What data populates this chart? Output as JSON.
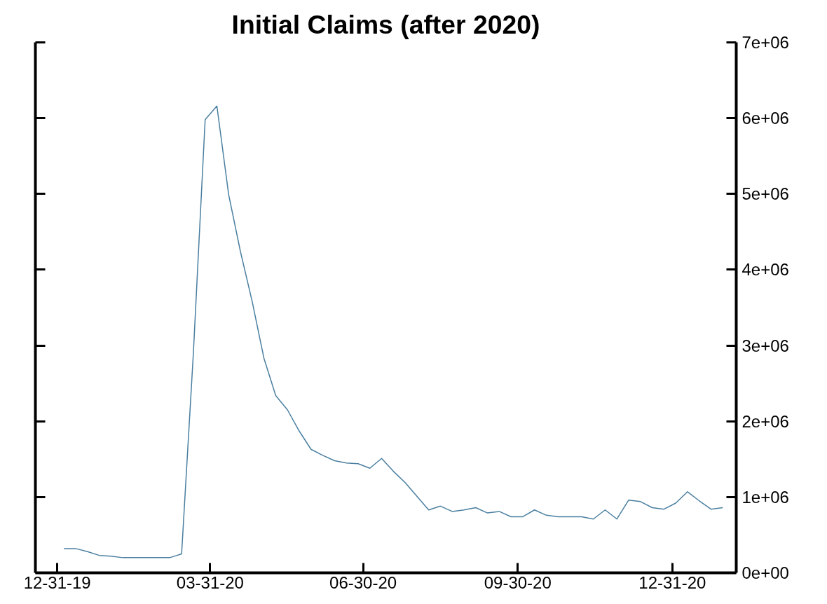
{
  "chart_data": {
    "type": "line",
    "title": "Initial Claims (after 2020)",
    "x": [
      "2020-01-04",
      "2020-01-11",
      "2020-01-18",
      "2020-01-25",
      "2020-02-01",
      "2020-02-08",
      "2020-02-15",
      "2020-02-22",
      "2020-02-29",
      "2020-03-07",
      "2020-03-14",
      "2020-03-21",
      "2020-03-28",
      "2020-04-04",
      "2020-04-11",
      "2020-04-18",
      "2020-04-25",
      "2020-05-02",
      "2020-05-09",
      "2020-05-16",
      "2020-05-23",
      "2020-05-30",
      "2020-06-06",
      "2020-06-13",
      "2020-06-20",
      "2020-06-27",
      "2020-07-04",
      "2020-07-11",
      "2020-07-18",
      "2020-07-25",
      "2020-08-01",
      "2020-08-08",
      "2020-08-15",
      "2020-08-22",
      "2020-08-29",
      "2020-09-05",
      "2020-09-12",
      "2020-09-19",
      "2020-09-26",
      "2020-10-03",
      "2020-10-10",
      "2020-10-17",
      "2020-10-24",
      "2020-10-31",
      "2020-11-07",
      "2020-11-14",
      "2020-11-21",
      "2020-11-28",
      "2020-12-05",
      "2020-12-12",
      "2020-12-19",
      "2020-12-26",
      "2021-01-02",
      "2021-01-09",
      "2021-01-16",
      "2021-01-23",
      "2021-01-30"
    ],
    "series": [
      {
        "color": "#4a7fa0",
        "values": [
          320000,
          320000,
          280000,
          230000,
          220000,
          200000,
          200000,
          200000,
          200000,
          200000,
          250000,
          2900000,
          5980000,
          6160000,
          4990000,
          4240000,
          3580000,
          2830000,
          2340000,
          2150000,
          1870000,
          1630000,
          1550000,
          1480000,
          1450000,
          1440000,
          1380000,
          1510000,
          1340000,
          1190000,
          1010000,
          830000,
          880000,
          810000,
          830000,
          860000,
          790000,
          810000,
          740000,
          740000,
          830000,
          760000,
          740000,
          740000,
          740000,
          710000,
          830000,
          710000,
          960000,
          940000,
          860000,
          840000,
          920000,
          1070000,
          950000,
          840000,
          860000
        ]
      }
    ],
    "xlim": [
      "2019-12-18",
      "2021-02-07"
    ],
    "xticks": [
      {
        "value": "2019-12-31",
        "label": "12-31-19"
      },
      {
        "value": "2020-03-31",
        "label": "03-31-20"
      },
      {
        "value": "2020-06-30",
        "label": "06-30-20"
      },
      {
        "value": "2020-09-30",
        "label": "09-30-20"
      },
      {
        "value": "2020-12-31",
        "label": "12-31-20"
      }
    ],
    "ylim": [
      0,
      7000000
    ],
    "yticks": [
      {
        "value": 0,
        "label": "0e+00"
      },
      {
        "value": 1000000,
        "label": "1e+06"
      },
      {
        "value": 2000000,
        "label": "2e+06"
      },
      {
        "value": 3000000,
        "label": "3e+06"
      },
      {
        "value": 4000000,
        "label": "4e+06"
      },
      {
        "value": 5000000,
        "label": "5e+06"
      },
      {
        "value": 6000000,
        "label": "6e+06"
      },
      {
        "value": 7000000,
        "label": "7e+06"
      }
    ],
    "grid": false,
    "line_style": "solid",
    "marker": "none"
  }
}
